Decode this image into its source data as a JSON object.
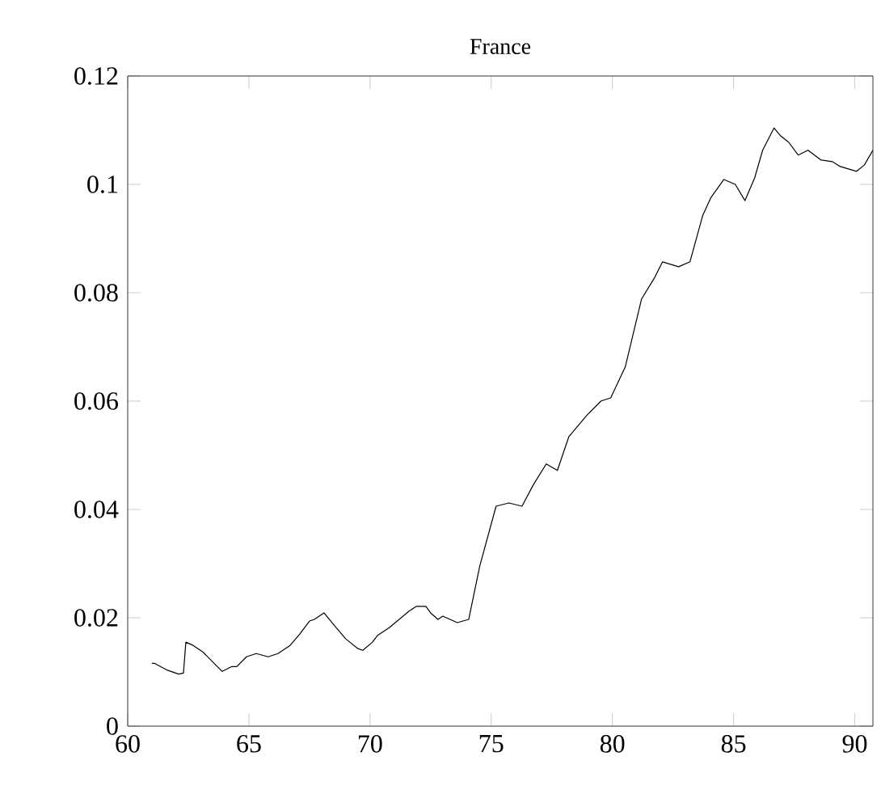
{
  "chart_data": {
    "type": "line",
    "title": "France",
    "color": "#000000",
    "x": [
      61.0,
      61.1,
      61.6,
      62.1,
      62.3,
      62.4,
      62.7,
      63.1,
      63.7,
      63.9,
      64.3,
      64.5,
      64.9,
      65.3,
      65.8,
      66.2,
      66.7,
      67.1,
      67.5,
      67.7,
      68.1,
      68.6,
      69.0,
      69.5,
      69.7,
      70.1,
      70.3,
      70.8,
      71.2,
      71.6,
      71.9,
      72.3,
      72.5,
      72.8,
      73.0,
      73.3,
      73.6,
      74.07,
      74.53,
      75.2,
      75.73,
      76.27,
      76.73,
      77.27,
      77.73,
      78.2,
      78.93,
      79.53,
      79.93,
      80.53,
      81.2,
      81.73,
      82.07,
      82.73,
      83.2,
      83.73,
      84.07,
      84.6,
      85.07,
      85.47,
      85.87,
      86.2,
      86.67,
      86.93,
      87.27,
      87.67,
      88.07,
      88.6,
      89.07,
      89.4,
      90.07,
      90.4,
      90.75
    ],
    "values": [
      0.0116,
      0.0116,
      0.0104,
      0.0096,
      0.0098,
      0.0155,
      0.0149,
      0.0137,
      0.011,
      0.0101,
      0.011,
      0.011,
      0.0128,
      0.0134,
      0.0128,
      0.0134,
      0.0149,
      0.017,
      0.0194,
      0.0197,
      0.0209,
      0.0182,
      0.0161,
      0.0143,
      0.014,
      0.0155,
      0.0167,
      0.0182,
      0.0197,
      0.0212,
      0.0221,
      0.0221,
      0.0209,
      0.0197,
      0.0203,
      0.0197,
      0.0191,
      0.0197,
      0.0296,
      0.0406,
      0.0412,
      0.0406,
      0.0445,
      0.0484,
      0.0472,
      0.0534,
      0.0573,
      0.06,
      0.0606,
      0.0663,
      0.0788,
      0.0827,
      0.0857,
      0.0848,
      0.0857,
      0.0943,
      0.0976,
      0.1009,
      0.1,
      0.097,
      0.1012,
      0.1063,
      0.1104,
      0.109,
      0.1078,
      0.1054,
      0.1063,
      0.1045,
      0.1042,
      0.1033,
      0.1024,
      0.1036,
      0.1063
    ],
    "xlim": [
      60,
      90.75
    ],
    "ylim": [
      0,
      0.12
    ],
    "xticks": [
      60,
      65,
      70,
      75,
      80,
      85,
      90
    ],
    "yticks": [
      0,
      0.02,
      0.04,
      0.06,
      0.08,
      0.1,
      0.12
    ]
  }
}
